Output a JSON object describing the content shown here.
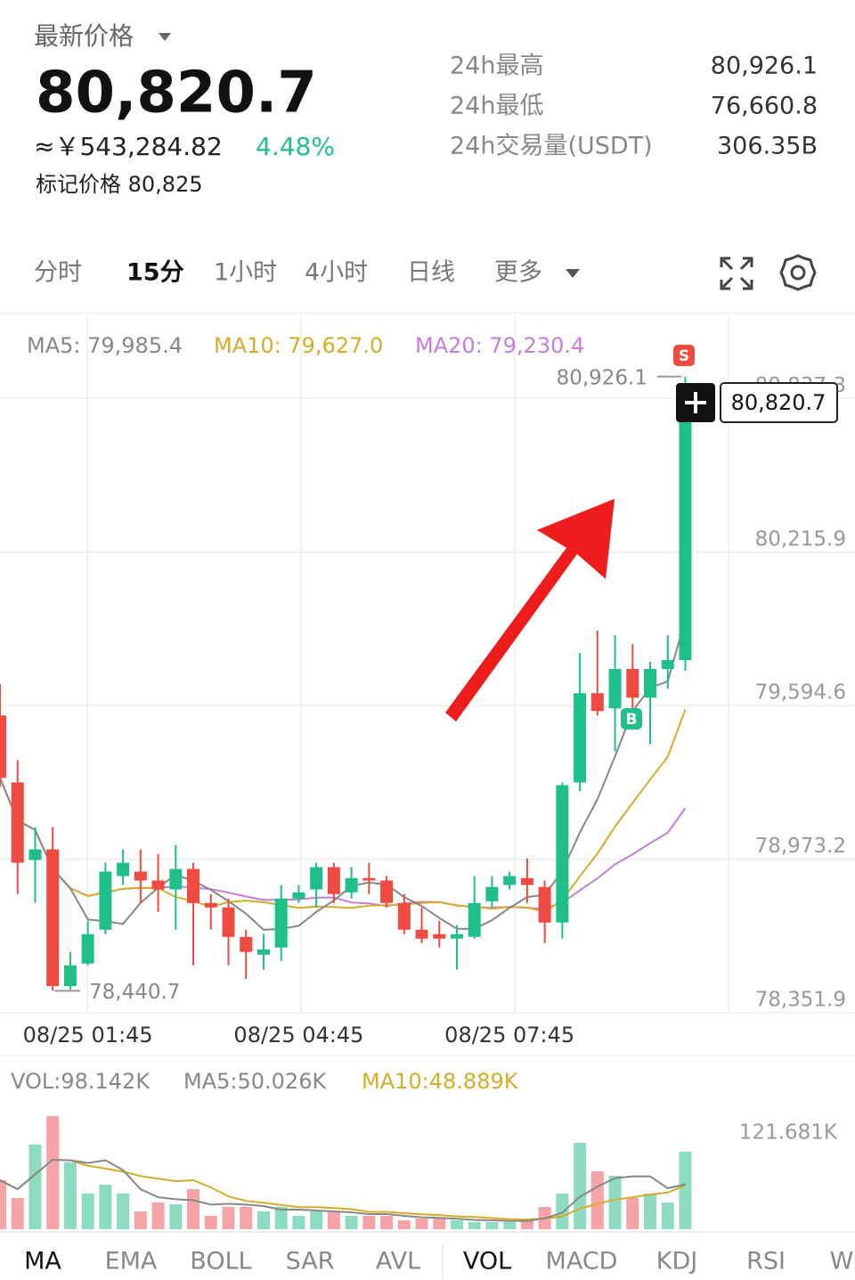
{
  "header": {
    "price_label": "最新价格",
    "price": "80,820.7",
    "cny": "≈￥543,284.82",
    "change": "4.48%",
    "mark_price": "标记价格 80,825",
    "stats": [
      {
        "label": "24h最高",
        "value": "80,926.1"
      },
      {
        "label": "24h最低",
        "value": "76,660.8"
      },
      {
        "label": "24h交易量(USDT)",
        "value": "306.35B"
      }
    ]
  },
  "intervals": [
    "分时",
    "15分",
    "1小时",
    "4小时",
    "日线",
    "更多"
  ],
  "chart_data": {
    "type": "candlestick",
    "ma_labels": [
      "MA5: 79,985.4",
      "MA10: 79,627.0",
      "MA20: 79,230.4"
    ],
    "categories": [
      null,
      null,
      null,
      null,
      null,
      "08/25 01:45",
      null,
      null,
      null,
      null,
      null,
      null,
      null,
      null,
      null,
      null,
      null,
      "08/25 04:45",
      null,
      null,
      null,
      null,
      null,
      null,
      null,
      null,
      null,
      null,
      null,
      "08/25 07:45",
      null,
      null,
      null,
      null,
      null,
      null,
      null,
      null,
      null,
      null
    ],
    "open": [
      79555,
      79284,
      78970,
      79013,
      78460,
      78551,
      78688,
      78905,
      78923,
      78887,
      78851,
      78934,
      78796,
      78778,
      78659,
      78587,
      78616,
      78814,
      78851,
      78941,
      78839,
      78897,
      78887,
      78796,
      78688,
      78670,
      78652,
      78659,
      78803,
      78869,
      78897,
      78861,
      78717,
      79284,
      79645,
      79584,
      79743,
      79627,
      79743,
      79779
    ],
    "close": [
      79302,
      78959,
      79013,
      78460,
      78544,
      78670,
      78923,
      78959,
      78887,
      78851,
      78934,
      78796,
      78778,
      78659,
      78598,
      78608,
      78814,
      78839,
      78941,
      78832,
      78897,
      78887,
      78796,
      78688,
      78652,
      78652,
      78670,
      78796,
      78861,
      78905,
      78869,
      78717,
      79273,
      79645,
      79573,
      79743,
      79627,
      79743,
      79779,
      80820.7
    ],
    "high": [
      79681,
      79374,
      79103,
      79103,
      78598,
      78724,
      78959,
      79013,
      79013,
      78995,
      79031,
      78959,
      78832,
      78814,
      78688,
      78670,
      78869,
      78869,
      78959,
      78959,
      78941,
      78959,
      78905,
      78832,
      78778,
      78724,
      78706,
      78905,
      78905,
      78923,
      78977,
      78887,
      79284,
      79808,
      79898,
      79880,
      79844,
      79772,
      79880,
      80926.1
    ],
    "low": [
      79266,
      78832,
      78796,
      78440.7,
      78445,
      78544,
      78670,
      78869,
      78796,
      78760,
      78688,
      78544,
      78688,
      78544,
      78489,
      78526,
      78562,
      78796,
      78778,
      78796,
      78814,
      78832,
      78778,
      78670,
      78634,
      78616,
      78526,
      78652,
      78778,
      78851,
      78796,
      78634,
      78652,
      79248,
      79555,
      79410,
      79537,
      79439,
      79663,
      79736
    ],
    "up_color": "#1fbf8b",
    "down_color": "#ef4b41",
    "ylim": [
      78351.9,
      81170.4
    ],
    "yticks": [
      {
        "value": 78351.9,
        "label": "78,351.9"
      },
      {
        "value": 78973.2,
        "label": "78,973.2"
      },
      {
        "value": 79594.6,
        "label": "79,594.6"
      },
      {
        "value": 80215.9,
        "label": "80,215.9"
      },
      {
        "value": 80837.3,
        "label": "80,837.3"
      }
    ],
    "annotations": {
      "high": "80,926.1",
      "low": "78,440.7",
      "last_price": "80,820.7"
    },
    "markers": {
      "sell": "S",
      "buy": "B"
    }
  },
  "volume": {
    "type": "bar",
    "labels": [
      "VOL:98.142K",
      "MA5:50.026K",
      "MA10:48.889K"
    ],
    "values": [
      61969,
      39435,
      107037,
      143091,
      84503,
      45068,
      56335,
      45068,
      22534,
      33801,
      31548,
      50702,
      16901,
      28168,
      28168,
      22534,
      28168,
      16901,
      22534,
      22534,
      16901,
      16901,
      16901,
      11267,
      13520,
      13520,
      11267,
      9014,
      9014,
      9014,
      13520,
      28168,
      45068,
      109290,
      73236,
      67602,
      39435,
      45068,
      33801,
      98142
    ],
    "up_color": "#8edcbf",
    "down_color": "#f6a4a8",
    "ylim": [
      0,
      157740
    ],
    "yticks": [
      {
        "value": 121681,
        "label": "121.681K"
      }
    ]
  },
  "indicators": [
    "MA",
    "EMA",
    "BOLL",
    "SAR",
    "AVL",
    "VOL",
    "MACD",
    "KDJ",
    "RSI",
    "W"
  ]
}
